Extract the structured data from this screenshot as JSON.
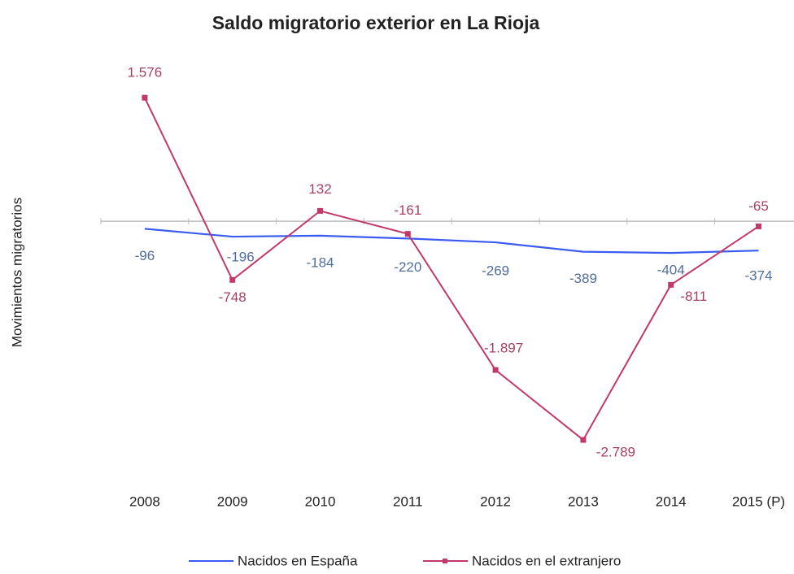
{
  "chart_data": {
    "type": "line",
    "title": "Saldo migratorio exterior en La Rioja",
    "y_label": "Movimientos migratorios",
    "categories": [
      "2008",
      "2009",
      "2010",
      "2011",
      "2012",
      "2013",
      "2014",
      "2015 (P)"
    ],
    "series": [
      {
        "name": "Nacidos en España",
        "color": "#3a5cf0",
        "marker": false,
        "values": [
          -96,
          -196,
          -184,
          -220,
          -269,
          -389,
          -404,
          -374
        ],
        "value_labels": [
          "-96",
          "-196",
          "-184",
          "-220",
          "-269",
          "-389",
          "-404",
          "-374"
        ]
      },
      {
        "name": "Nacidos en el extranjero",
        "color": "#c2386a",
        "marker": true,
        "values": [
          1576,
          -748,
          132,
          -161,
          -1897,
          -2789,
          -811,
          -65
        ],
        "value_labels": [
          "1.576",
          "-748",
          "132",
          "-161",
          "-1.897",
          "-2.789",
          "-811",
          "-65"
        ]
      }
    ],
    "ylim": [
      -3400,
      2200
    ],
    "legend": "bottom"
  }
}
